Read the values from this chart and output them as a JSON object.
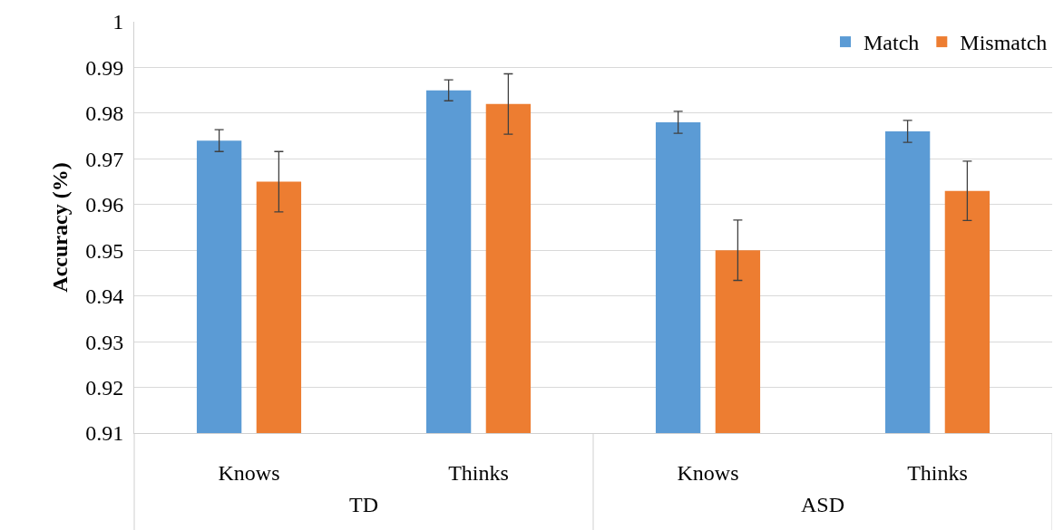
{
  "chart_data": {
    "type": "bar",
    "ylabel": "Accuracy (%)",
    "categories": [
      "Knows",
      "Thinks",
      "Knows",
      "Thinks"
    ],
    "series": [
      {
        "name": "Match",
        "color": "#5b9bd5",
        "values": [
          0.974,
          0.985,
          0.978,
          0.976
        ],
        "errors": [
          0.0024,
          0.0023,
          0.0024,
          0.0024
        ]
      },
      {
        "name": "Mismatch",
        "color": "#ed7d31",
        "values": [
          0.965,
          0.982,
          0.95,
          0.963
        ],
        "errors": [
          0.0066,
          0.0066,
          0.0066,
          0.0065
        ]
      }
    ],
    "ylim": [
      0.91,
      1
    ],
    "yticks": [
      0.91,
      0.92,
      0.93,
      0.94,
      0.95,
      0.96,
      0.97,
      0.98,
      0.99,
      1
    ],
    "grid": "y",
    "legend": "top right",
    "annotations": [
      "TD",
      "ASD"
    ]
  }
}
